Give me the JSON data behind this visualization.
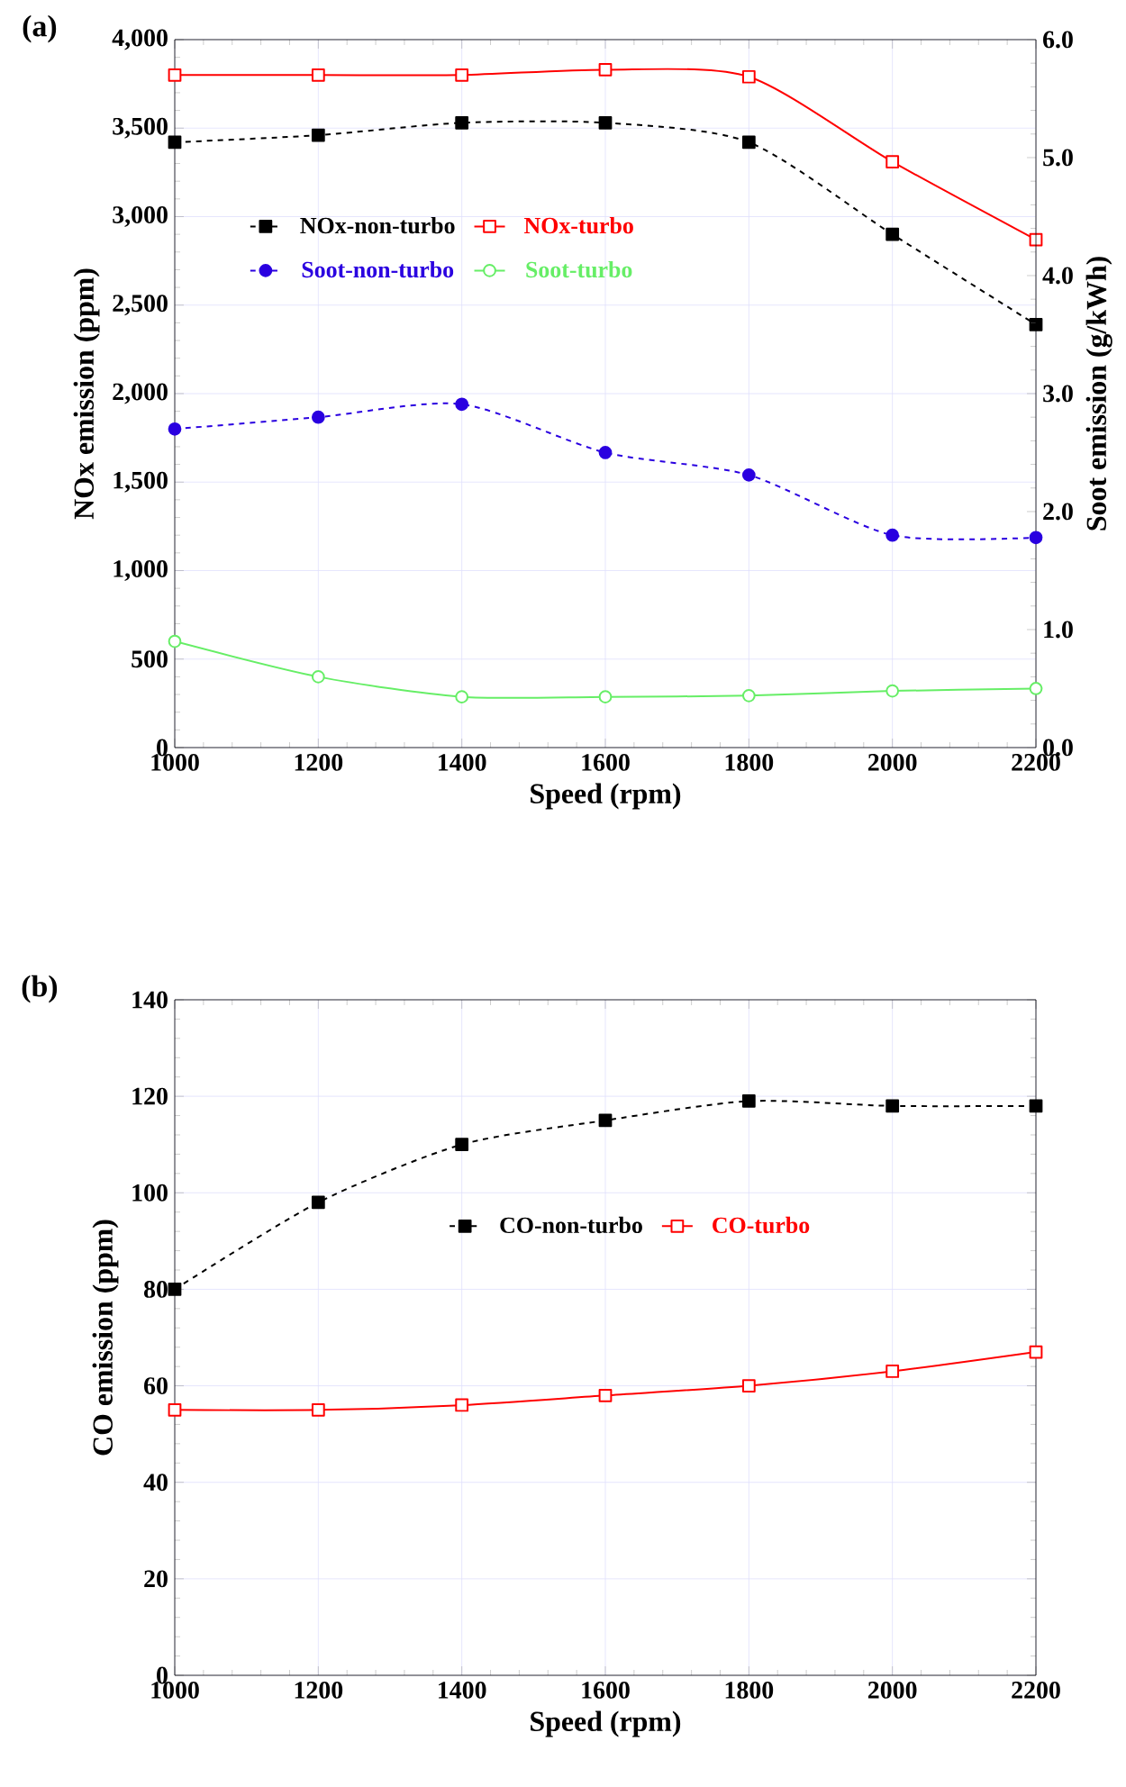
{
  "chart_data": [
    {
      "type": "line",
      "title": "(a)",
      "xlabel": "Speed (rpm)",
      "ylabel": "NOx emission (ppm)",
      "y2label": "Soot emission (g/kWh)",
      "x": [
        1000,
        1200,
        1400,
        1600,
        1800,
        2000,
        2200
      ],
      "xlim": [
        1000,
        2200
      ],
      "xticks": [
        1000,
        1200,
        1400,
        1600,
        1800,
        2000,
        2200
      ],
      "ylim": [
        0,
        4000
      ],
      "yticks": [
        0,
        500,
        {
          "value": 1000,
          "label": "1,000"
        },
        {
          "value": 1500,
          "label": "1,500"
        },
        {
          "value": 2000,
          "label": "2,000"
        },
        {
          "value": 2500,
          "label": "2,500"
        },
        {
          "value": 3000,
          "label": "3,000"
        },
        {
          "value": 3500,
          "label": "3,500"
        },
        {
          "value": 4000,
          "label": "4,000"
        }
      ],
      "y2lim": [
        0,
        6
      ],
      "y2ticks": [
        {
          "value": 0,
          "label": "0.0"
        },
        {
          "value": 1,
          "label": "1.0"
        },
        {
          "value": 2,
          "label": "2.0"
        },
        {
          "value": 3,
          "label": "3.0"
        },
        {
          "value": 4,
          "label": "4.0"
        },
        {
          "value": 5,
          "label": "5.0"
        },
        {
          "value": 6,
          "label": "6.0"
        }
      ],
      "grid": true,
      "legend": "top left",
      "series": [
        {
          "name": "NOx-non-turbo",
          "color": "#000000",
          "marker": "square",
          "line_style": "dashed",
          "values": [
            3420,
            3460,
            3530,
            3530,
            3420,
            2900,
            2390
          ]
        },
        {
          "name": "NOx-turbo",
          "color": "#ff0000",
          "marker": "square",
          "line_style": "solid",
          "values": [
            3800,
            3800,
            3800,
            3830,
            3790,
            3310,
            2870
          ]
        },
        {
          "name": "Soot-non-turbo",
          "color": "#2a00e0",
          "marker": "circle",
          "line_style": "dashed",
          "axis": "y2",
          "values": [
            2.7,
            2.8,
            2.91,
            2.5,
            2.31,
            1.8,
            1.78
          ]
        },
        {
          "name": "Soot-turbo",
          "color": "#66ee66",
          "marker": "circle",
          "line_style": "solid",
          "axis": "y2",
          "values": [
            0.9,
            0.6,
            0.43,
            0.43,
            0.44,
            0.48,
            0.5
          ]
        }
      ]
    },
    {
      "type": "line",
      "title": "(b)",
      "xlabel": "Speed (rpm)",
      "ylabel": "CO emission (ppm)",
      "x": [
        1000,
        1200,
        1400,
        1600,
        1800,
        2000,
        2200
      ],
      "xlim": [
        1000,
        2200
      ],
      "xticks": [
        1000,
        1200,
        1400,
        1600,
        1800,
        2000,
        2200
      ],
      "ylim": [
        0,
        140
      ],
      "yticks": [
        0,
        20,
        40,
        60,
        80,
        100,
        120,
        140
      ],
      "grid": true,
      "legend": "top",
      "series": [
        {
          "name": "CO-non-turbo",
          "color": "#000000",
          "marker": "square",
          "line_style": "dashed",
          "values": [
            80,
            98,
            110,
            115,
            119,
            118,
            118
          ]
        },
        {
          "name": "CO-turbo",
          "color": "#ff0000",
          "marker": "square",
          "line_style": "solid",
          "values": [
            55,
            55,
            56,
            58,
            60,
            63,
            67
          ]
        }
      ]
    }
  ]
}
